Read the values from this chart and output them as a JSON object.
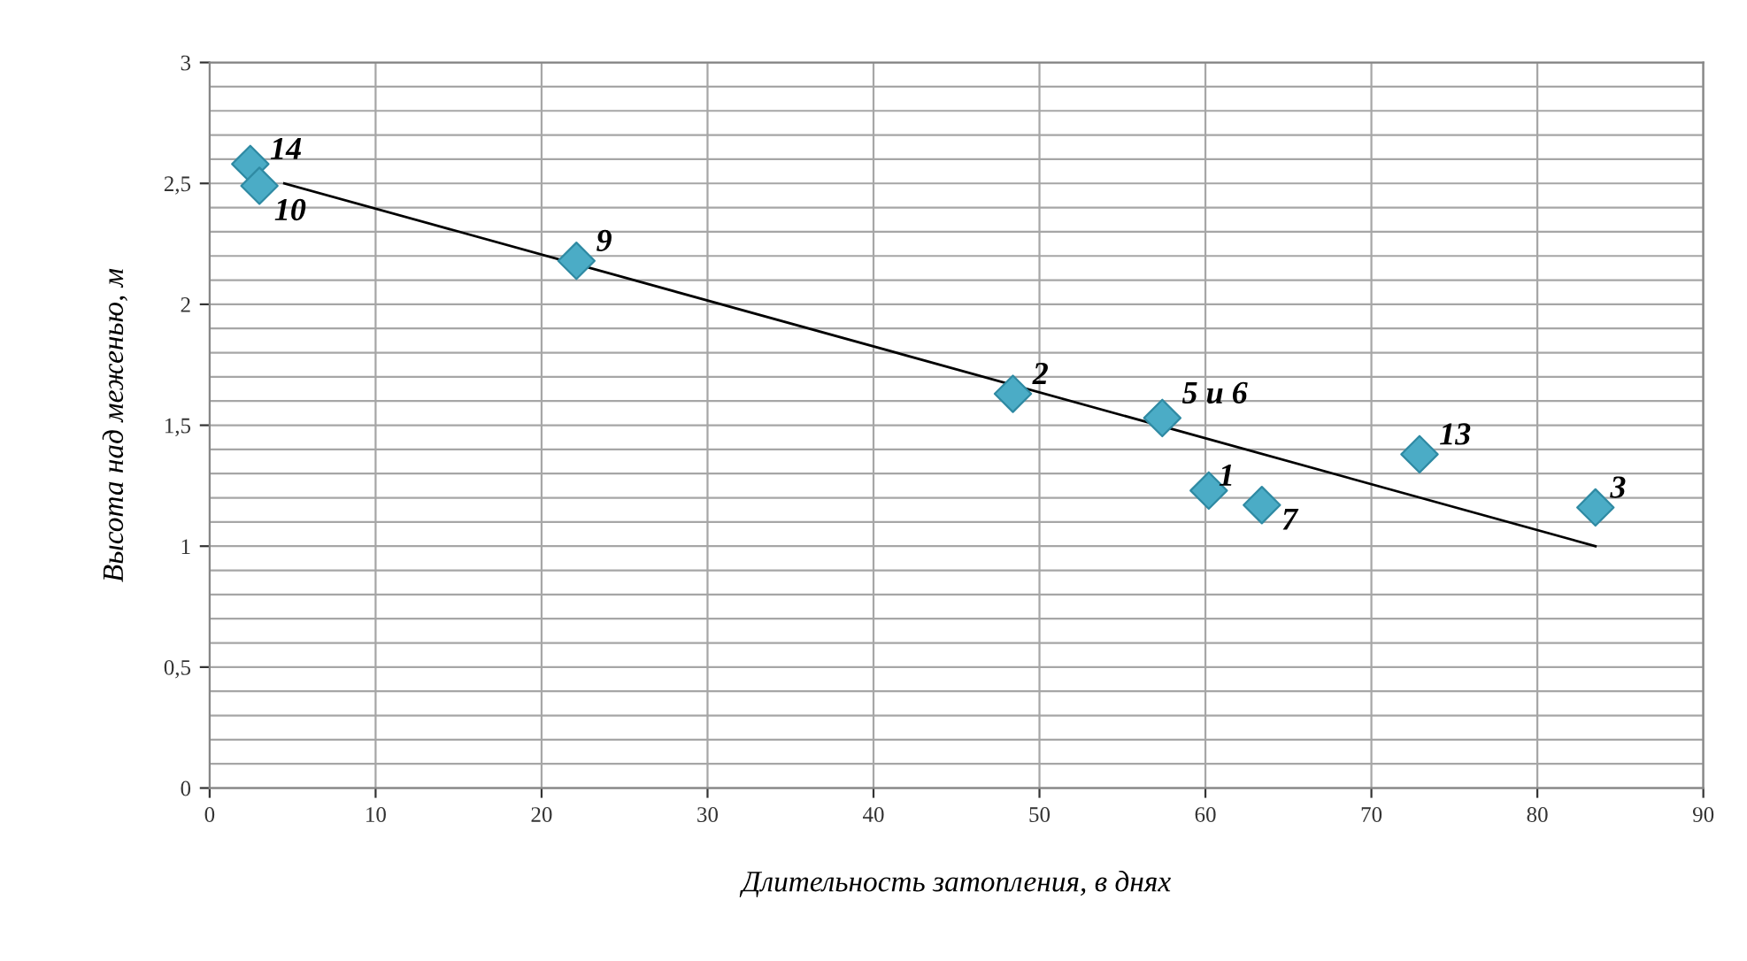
{
  "chart_data": {
    "type": "scatter",
    "xlabel": "Длительность затопления, в днях",
    "ylabel": "Высота над меженью, м",
    "series": [
      {
        "color": "#4bacc6",
        "marker": "diamond",
        "x": [
          2.45,
          3.0,
          22.1,
          48.4,
          57.4,
          60.2,
          63.4,
          72.9,
          83.5
        ],
        "values": [
          2.58,
          2.49,
          2.18,
          1.63,
          1.53,
          1.23,
          1.17,
          1.38,
          1.16
        ]
      },
      {
        "type": "line",
        "color": "#000000",
        "marker": "none",
        "line_style": "solid",
        "x": [
          4.5,
          83.5
        ],
        "values": [
          2.5,
          1.0
        ]
      }
    ],
    "annotations": [
      {
        "text": "14",
        "x": 2.45,
        "y": 2.58
      },
      {
        "text": "10",
        "x": 3.0,
        "y": 2.49
      },
      {
        "text": "9",
        "x": 22.1,
        "y": 2.18
      },
      {
        "text": "2",
        "x": 48.4,
        "y": 1.63
      },
      {
        "text": "5 и 6",
        "x": 57.4,
        "y": 1.53
      },
      {
        "text": "1",
        "x": 60.2,
        "y": 1.23
      },
      {
        "text": "7",
        "x": 63.4,
        "y": 1.17
      },
      {
        "text": "13",
        "x": 72.9,
        "y": 1.38
      },
      {
        "text": "3",
        "x": 83.5,
        "y": 1.16
      }
    ],
    "xlim": [
      0,
      90
    ],
    "xticks": [
      0,
      10,
      20,
      30,
      40,
      50,
      60,
      70,
      80,
      90
    ],
    "ylim": [
      0,
      3
    ],
    "yticks": [
      {
        "value": 0,
        "label": "0"
      },
      {
        "value": 0.1,
        "label": null
      },
      {
        "value": 0.2,
        "label": null
      },
      {
        "value": 0.3,
        "label": null
      },
      {
        "value": 0.4,
        "label": null
      },
      {
        "value": 0.5,
        "label": "0,5"
      },
      {
        "value": 0.6,
        "label": null
      },
      {
        "value": 0.7,
        "label": null
      },
      {
        "value": 0.8,
        "label": null
      },
      {
        "value": 0.9,
        "label": null
      },
      {
        "value": 1,
        "label": "1"
      },
      {
        "value": 1.1,
        "label": null
      },
      {
        "value": 1.2,
        "label": null
      },
      {
        "value": 1.3,
        "label": null
      },
      {
        "value": 1.4,
        "label": null
      },
      {
        "value": 1.5,
        "label": "1,5"
      },
      {
        "value": 1.6,
        "label": null
      },
      {
        "value": 1.7,
        "label": null
      },
      {
        "value": 1.8,
        "label": null
      },
      {
        "value": 1.9,
        "label": null
      },
      {
        "value": 2,
        "label": "2"
      },
      {
        "value": 2.1,
        "label": null
      },
      {
        "value": 2.2,
        "label": null
      },
      {
        "value": 2.3,
        "label": null
      },
      {
        "value": 2.4,
        "label": null
      },
      {
        "value": 2.5,
        "label": "2,5"
      },
      {
        "value": 2.6,
        "label": null
      },
      {
        "value": 2.7,
        "label": null
      },
      {
        "value": 2.8,
        "label": null
      },
      {
        "value": 2.9,
        "label": null
      },
      {
        "value": 3,
        "label": "3"
      }
    ],
    "grid": true,
    "legend": false
  }
}
